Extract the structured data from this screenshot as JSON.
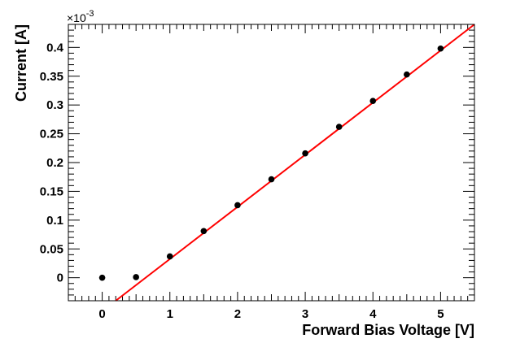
{
  "chart_data": {
    "type": "scatter",
    "title": "",
    "xlabel": "Forward Bias Voltage [V]",
    "ylabel": "Current [A]",
    "y_multiplier_label": "×10",
    "y_multiplier_exponent": "-3",
    "xlim": [
      -0.5,
      5.5
    ],
    "ylim": [
      -0.04,
      0.44
    ],
    "grid": false,
    "legend": "none",
    "x_ticks": [
      0,
      1,
      2,
      3,
      4,
      5
    ],
    "y_ticks": [
      0,
      0.05,
      0.1,
      0.15,
      0.2,
      0.25,
      0.3,
      0.35,
      0.4
    ],
    "y_tick_labels": [
      "0",
      "0.05",
      "0.1",
      "0.15",
      "0.2",
      "0.25",
      "0.3",
      "0.35",
      "0.4"
    ],
    "series": [
      {
        "x": [
          0,
          0.5,
          1,
          1.5,
          2,
          2.5,
          3,
          3.5,
          4,
          4.5,
          5
        ],
        "y": [
          0,
          0.001,
          0.037,
          0.081,
          0.126,
          0.171,
          0.216,
          0.262,
          0.307,
          0.353,
          0.398
        ],
        "color": "#000000"
      }
    ],
    "fit_line": {
      "x": [
        0.2,
        5.5
      ],
      "y": [
        -0.04,
        0.44
      ],
      "color": "#ff0000"
    }
  }
}
